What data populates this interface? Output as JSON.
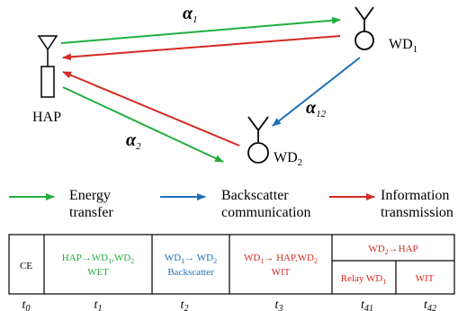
{
  "colors": {
    "green": "#1fae3e",
    "blue": "#1f6fb8",
    "red": "#d62a22",
    "black": "#000000"
  },
  "nodes": {
    "hap": {
      "label": "HAP",
      "icon": "antenna-icon"
    },
    "wd1": {
      "label": "WD",
      "sub": "1",
      "icon": "antenna-icon"
    },
    "wd2": {
      "label": "WD",
      "sub": "2",
      "icon": "antenna-icon"
    }
  },
  "channels": {
    "alpha1": {
      "symbol": "α",
      "sub": "1"
    },
    "alpha2": {
      "symbol": "α",
      "sub": "2"
    },
    "alpha12": {
      "symbol": "α",
      "sub": "12"
    }
  },
  "legend": {
    "energy": {
      "line1": "Energy",
      "line2": "transfer"
    },
    "backscatter": {
      "line1": "Backscatter",
      "line2": "communication"
    },
    "information": {
      "line1": "Information",
      "line2": "transmission"
    }
  },
  "timeline": {
    "ce": "CE",
    "hap_wet": {
      "line1_a": "HAP",
      "line1_b": "WD",
      "line1_c": "1",
      "line1_d": ",WD",
      "line1_e": "2",
      "line2": "WET"
    },
    "backscatter": {
      "line1_a": "WD",
      "line1_b": "1",
      "line1_c": "WD",
      "line1_d": "2",
      "line2": "Backscatter"
    },
    "wit": {
      "line1_a": "WD",
      "line1_b": "1",
      "line1_c": "HAP,WD",
      "line1_d": "2",
      "line2": "WIT"
    },
    "wd2_hap": {
      "a": "WD",
      "b": "2",
      "c": "HAP"
    },
    "relay": {
      "a": "Relay WD",
      "b": "1"
    },
    "wit2": "WIT",
    "arrow_glyph": "→"
  },
  "time_labels": [
    {
      "t": "t",
      "sub": "0"
    },
    {
      "t": "t",
      "sub": "1"
    },
    {
      "t": "t",
      "sub": "2"
    },
    {
      "t": "t",
      "sub": "3"
    },
    {
      "t": "t",
      "sub": "41"
    },
    {
      "t": "t",
      "sub": "42"
    }
  ]
}
